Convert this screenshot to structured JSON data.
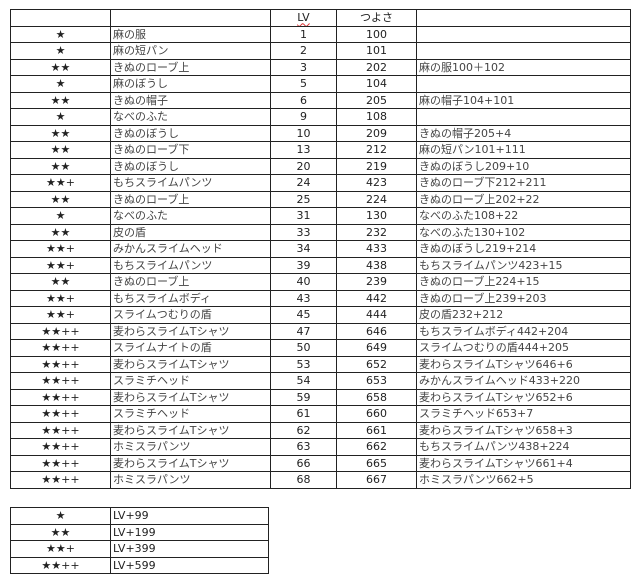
{
  "header": {
    "stars": "",
    "name": "",
    "lv": "LV",
    "strength": "つよさ",
    "formula": ""
  },
  "rows": [
    [
      "★",
      "麻の服",
      "1",
      "100",
      ""
    ],
    [
      "★",
      "麻の短パン",
      "2",
      "101",
      ""
    ],
    [
      "★★",
      "きぬのローブ上",
      "3",
      "202",
      "麻の服100＋102"
    ],
    [
      "★",
      "麻のぼうし",
      "5",
      "104",
      ""
    ],
    [
      "★★",
      "きぬの帽子",
      "6",
      "205",
      "麻の帽子104+101"
    ],
    [
      "★",
      "なべのふた",
      "9",
      "108",
      ""
    ],
    [
      "★★",
      "きぬのぼうし",
      "10",
      "209",
      "きぬの帽子205+4"
    ],
    [
      "★★",
      "きぬのローブ下",
      "13",
      "212",
      "麻の短パン101+111"
    ],
    [
      "★★",
      "きぬのぼうし",
      "20",
      "219",
      "きぬのぼうし209+10"
    ],
    [
      "★★+",
      "もちスライムパンツ",
      "24",
      "423",
      "きぬのローブ下212+211"
    ],
    [
      "★★",
      "きぬのローブ上",
      "25",
      "224",
      "きぬのローブ上202+22"
    ],
    [
      "★",
      "なべのふた",
      "31",
      "130",
      "なべのふた108+22"
    ],
    [
      "★★",
      "皮の盾",
      "33",
      "232",
      "なべのふた130+102"
    ],
    [
      "★★+",
      "みかんスライムヘッド",
      "34",
      "433",
      "きぬのぼうし219+214"
    ],
    [
      "★★+",
      "もちスライムパンツ",
      "39",
      "438",
      "もちスライムパンツ423+15"
    ],
    [
      "★★",
      "きぬのローブ上",
      "40",
      "239",
      "きぬのローブ上224+15"
    ],
    [
      "★★+",
      "もちスライムボディ",
      "43",
      "442",
      "きぬのローブ上239+203"
    ],
    [
      "★★+",
      "スライムつむりの盾",
      "45",
      "444",
      "皮の盾232+212"
    ],
    [
      "★★++",
      "麦わらスライムTシャツ",
      "47",
      "646",
      "もちスライムボディ442+204"
    ],
    [
      "★★++",
      "スライムナイトの盾",
      "50",
      "649",
      "スライムつむりの盾444+205"
    ],
    [
      "★★++",
      "麦わらスライムTシャツ",
      "53",
      "652",
      "麦わらスライムTシャツ646+6"
    ],
    [
      "★★++",
      "スラミチヘッド",
      "54",
      "653",
      "みかんスライムヘッド433+220"
    ],
    [
      "★★++",
      "麦わらスライムTシャツ",
      "59",
      "658",
      "麦わらスライムTシャツ652+6"
    ],
    [
      "★★++",
      "スラミチヘッド",
      "61",
      "660",
      "スラミチヘッド653+7"
    ],
    [
      "★★++",
      "麦わらスライムTシャツ",
      "62",
      "661",
      "麦わらスライムTシャツ658+3"
    ],
    [
      "★★++",
      "ホミスラパンツ",
      "63",
      "662",
      "もちスライムパンツ438+224"
    ],
    [
      "★★++",
      "麦わらスライムTシャツ",
      "66",
      "665",
      "麦わらスライムTシャツ661+4"
    ],
    [
      "★★++",
      "ホミスラパンツ",
      "68",
      "667",
      "ホミスラパンツ662+5"
    ]
  ],
  "legend": [
    [
      "★",
      "LV+99"
    ],
    [
      "★★",
      "LV+199"
    ],
    [
      "★★+",
      "LV+399"
    ],
    [
      "★★++",
      "LV+599"
    ]
  ]
}
